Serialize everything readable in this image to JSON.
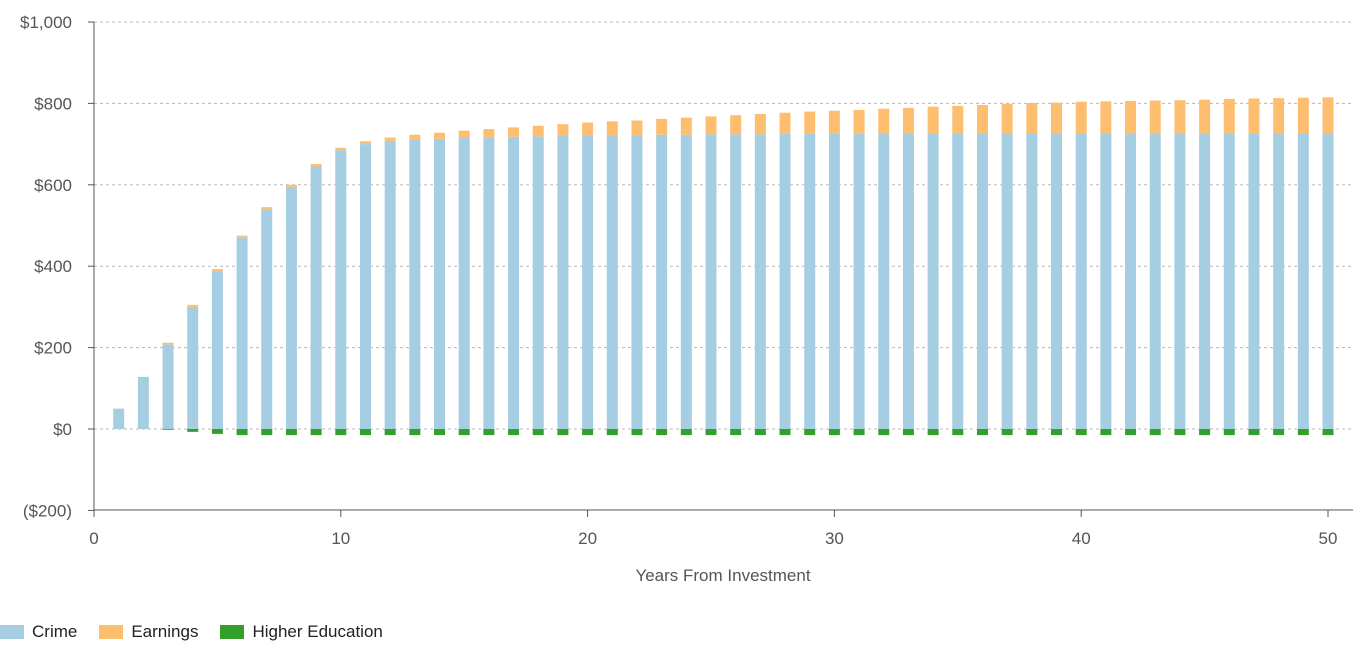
{
  "chart_data": {
    "type": "bar",
    "stacked": true,
    "title": "",
    "xlabel": "Years From Investment",
    "ylabel": "",
    "xlim": [
      0,
      51
    ],
    "ylim": [
      -200,
      1000
    ],
    "x_ticks": [
      0,
      10,
      20,
      30,
      40,
      50
    ],
    "x_tick_labels": [
      "0",
      "10",
      "20",
      "30",
      "40",
      "50"
    ],
    "y_ticks": [
      -200,
      0,
      200,
      400,
      600,
      800,
      1000
    ],
    "y_tick_labels": [
      "($200)",
      "$0",
      "$200",
      "$400",
      "$600",
      "$800",
      "$1,000"
    ],
    "grid": true,
    "legend_position": "bottom-left",
    "x": [
      1,
      2,
      3,
      4,
      5,
      6,
      7,
      8,
      9,
      10,
      11,
      12,
      13,
      14,
      15,
      16,
      17,
      18,
      19,
      20,
      21,
      22,
      23,
      24,
      25,
      26,
      27,
      28,
      29,
      30,
      31,
      32,
      33,
      34,
      35,
      36,
      37,
      38,
      39,
      40,
      41,
      42,
      43,
      44,
      45,
      46,
      47,
      48,
      49,
      50
    ],
    "series": [
      {
        "name": "Crime",
        "color": "#a6cee3",
        "values": [
          50,
          128,
          208,
          300,
          388,
          470,
          540,
          595,
          645,
          685,
          700,
          708,
          711,
          713,
          715,
          717,
          718,
          719,
          720,
          721,
          722,
          722,
          723,
          723,
          724,
          724,
          724,
          725,
          725,
          725,
          725,
          726,
          726,
          726,
          726,
          726,
          727,
          727,
          727,
          727,
          727,
          727,
          727,
          727,
          727,
          727,
          727,
          727,
          727,
          727
        ]
      },
      {
        "name": "Earnings",
        "color": "#fdbf6f",
        "values": [
          0,
          0,
          4,
          5,
          5,
          5,
          5,
          5,
          6,
          6,
          7,
          8,
          12,
          15,
          18,
          20,
          23,
          26,
          29,
          32,
          34,
          36,
          39,
          42,
          44,
          47,
          50,
          52,
          55,
          57,
          59,
          61,
          63,
          66,
          68,
          70,
          72,
          74,
          75,
          77,
          78,
          79,
          80,
          81,
          82,
          84,
          85,
          86,
          87,
          88
        ]
      },
      {
        "name": "Higher Education",
        "color": "#33a02c",
        "values": [
          0,
          0,
          -2,
          -7,
          -12,
          -15,
          -15,
          -15,
          -15,
          -15,
          -15,
          -15,
          -15,
          -15,
          -15,
          -15,
          -15,
          -15,
          -15,
          -15,
          -15,
          -15,
          -15,
          -15,
          -15,
          -15,
          -15,
          -15,
          -15,
          -15,
          -15,
          -15,
          -15,
          -15,
          -15,
          -15,
          -15,
          -15,
          -15,
          -15,
          -15,
          -15,
          -15,
          -15,
          -15,
          -15,
          -15,
          -15,
          -15,
          -15
        ]
      }
    ]
  }
}
